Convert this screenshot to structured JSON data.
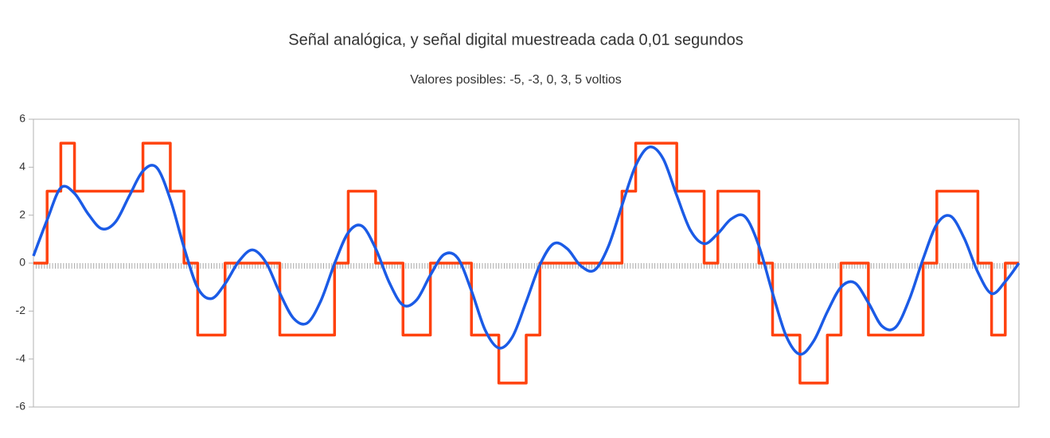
{
  "chart_data": {
    "type": "line",
    "title": "Señal analógica, y señal digital muestreada cada 0,01 segundos",
    "subtitle": "Valores posibles: -5, -3, 0, 3, 5 voltios",
    "ylim": [
      -6,
      6
    ],
    "yticks": [
      -6,
      -4,
      -2,
      0,
      2,
      4,
      6
    ],
    "grid": false,
    "series": [
      {
        "color": "#ff420e",
        "step": true,
        "values": [
          0,
          3,
          5,
          3,
          3,
          3,
          3,
          3,
          5,
          5,
          3,
          0,
          -3,
          -3,
          0,
          0,
          0,
          0,
          -3,
          -3,
          -3,
          -3,
          0,
          3,
          3,
          0,
          0,
          -3,
          -3,
          0,
          0,
          0,
          -3,
          -3,
          -5,
          -5,
          -3,
          0,
          0,
          0,
          0,
          0,
          0,
          3,
          5,
          5,
          5,
          3,
          3,
          0,
          3,
          3,
          3,
          0,
          -3,
          -3,
          -5,
          -5,
          -3,
          0,
          0,
          -3,
          -3,
          -3,
          -3,
          0,
          3,
          3,
          3,
          0,
          -3,
          0,
          0
        ]
      },
      {
        "color": "#1b5be6",
        "step": false,
        "values": [
          0.3,
          1.8,
          3.14,
          2.91,
          2.05,
          1.43,
          1.72,
          2.8,
          3.84,
          3.99,
          2.66,
          0.66,
          -1.03,
          -1.48,
          -0.86,
          0.07,
          0.55,
          0.02,
          -1.25,
          -2.3,
          -2.5,
          -1.57,
          -0.02,
          1.27,
          1.55,
          0.61,
          -0.81,
          -1.75,
          -1.53,
          -0.5,
          0.36,
          0.21,
          -1.15,
          -2.79,
          -3.54,
          -3.07,
          -1.61,
          -0.07,
          0.81,
          0.6,
          -0.12,
          -0.29,
          0.69,
          2.41,
          4.07,
          4.84,
          4.36,
          2.82,
          1.37,
          0.81,
          1.23,
          1.85,
          1.93,
          0.72,
          -1.25,
          -3.05,
          -3.8,
          -3.25,
          -2.03,
          -1.0,
          -0.82,
          -1.65,
          -2.63,
          -2.67,
          -1.5,
          0.18,
          1.62,
          1.96,
          1.04,
          -0.38,
          -1.27,
          -0.77,
          0
        ]
      }
    ]
  }
}
